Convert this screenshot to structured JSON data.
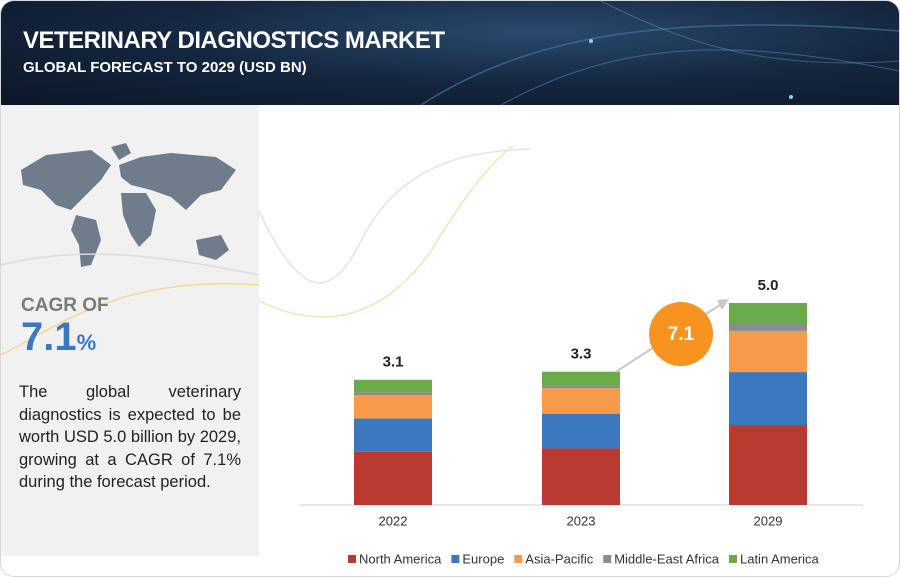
{
  "header": {
    "title": "VETERINARY DIAGNOSTICS MARKET",
    "subtitle": "GLOBAL FORECAST TO 2029 (USD BN)"
  },
  "panel": {
    "cagr_label": "CAGR OF",
    "cagr_value": "7.1",
    "cagr_unit": "%",
    "description": "The global veterinary diagnostics is expected to be worth USD 5.0 billion by 2029, growing at a CAGR of 7.1% during the forecast period."
  },
  "chart_data": {
    "type": "stacked_bar",
    "categories": [
      "2022",
      "2023",
      "2029"
    ],
    "series": [
      {
        "name": "North America",
        "color": "#b83a30",
        "values": [
          1.33,
          1.4,
          1.98
        ]
      },
      {
        "name": "Europe",
        "color": "#3b78bf",
        "values": [
          0.81,
          0.86,
          1.31
        ]
      },
      {
        "name": "Asia-Pacific",
        "color": "#f79a4a",
        "values": [
          0.58,
          0.63,
          1.02
        ]
      },
      {
        "name": "Middle-East Africa",
        "color": "#8c8c8c",
        "values": [
          0.07,
          0.07,
          0.17
        ]
      },
      {
        "name": "Latin America",
        "color": "#6aab49",
        "values": [
          0.31,
          0.34,
          0.52
        ]
      }
    ],
    "totals": [
      3.1,
      3.3,
      5
    ],
    "total_labels": [
      "3.1",
      "3.3",
      "5.0"
    ],
    "cagr": 7.1,
    "ylim": [
      0,
      5
    ],
    "legend": "bottom"
  }
}
